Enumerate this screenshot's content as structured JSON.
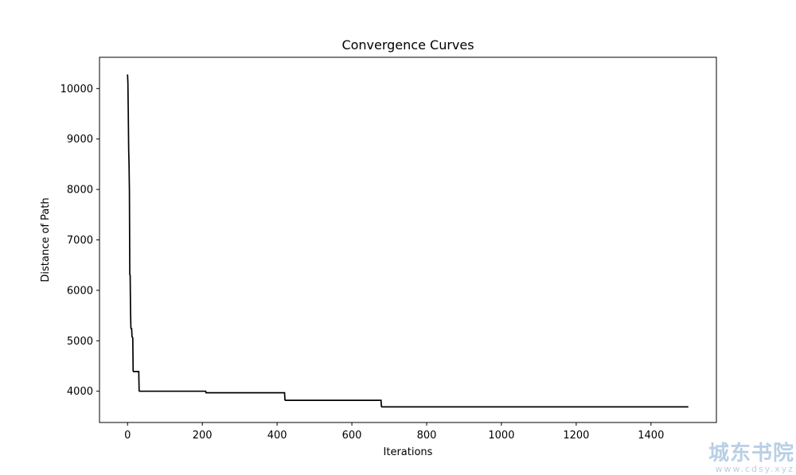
{
  "chart_data": {
    "type": "line",
    "title": "Convergence Curves",
    "xlabel": "Iterations",
    "ylabel": "Distance of Path",
    "xlim": [
      -75,
      1575
    ],
    "ylim": [
      3380,
      10620
    ],
    "xticks": [
      0,
      200,
      400,
      600,
      800,
      1000,
      1200,
      1400
    ],
    "yticks": [
      4000,
      5000,
      6000,
      7000,
      8000,
      9000,
      10000
    ],
    "grid": false,
    "line_color": "#000000",
    "series": [
      {
        "x": [
          0,
          1,
          2,
          3,
          4,
          5,
          6,
          7,
          8,
          9,
          10,
          11,
          12,
          13,
          14,
          15,
          16,
          17,
          18,
          19,
          20,
          21,
          22,
          23,
          30,
          31,
          32,
          209,
          210,
          211,
          420,
          421,
          422,
          678,
          679,
          680,
          1500
        ],
        "y": [
          10280,
          10100,
          9500,
          8800,
          8500,
          7980,
          6310,
          6300,
          5600,
          5250,
          5240,
          5240,
          5080,
          5070,
          5060,
          4400,
          4390,
          4390,
          4390,
          4390,
          4390,
          4390,
          4390,
          4390,
          4390,
          4010,
          4000,
          4000,
          3970,
          3970,
          3970,
          3830,
          3820,
          3820,
          3700,
          3690,
          3690
        ]
      }
    ]
  },
  "watermark": {
    "text": "城东书院",
    "url": "www.cdsy.xyz"
  }
}
